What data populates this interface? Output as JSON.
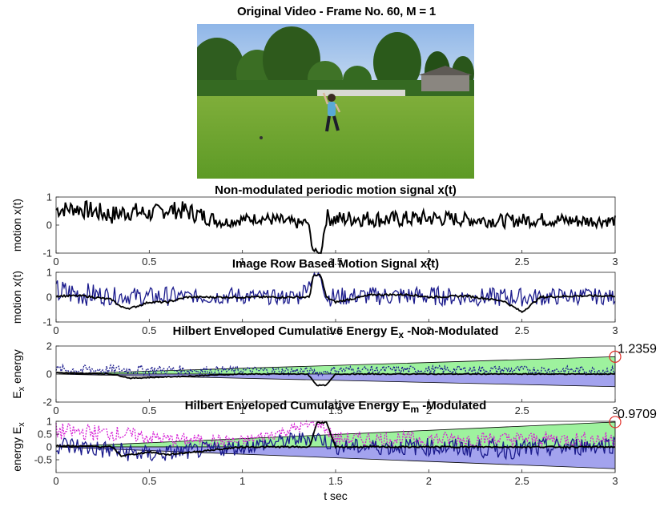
{
  "figure": {
    "top_title": "Original Video - Frame No. 60, M = 1"
  },
  "photo": {
    "description_icon": "video-frame-image"
  },
  "chart_data": [
    {
      "type": "line",
      "title": "Non-modulated periodic motion signal x(t)",
      "ylabel": "motion x(t)",
      "xlabel": "",
      "xlim": [
        0,
        3
      ],
      "ylim": [
        -1,
        1
      ],
      "xticks": [
        "0",
        "0.5",
        "1",
        "1.5",
        "2",
        "2.5",
        "3"
      ],
      "yticks": [
        "1",
        "0",
        "-1"
      ],
      "grid": false,
      "series": [
        {
          "color": "#000000",
          "style": "noisy",
          "x": [
            0,
            0.1,
            0.2,
            0.3,
            0.4,
            0.5,
            0.6,
            0.7,
            0.8,
            0.9,
            1.0,
            1.1,
            1.2,
            1.3,
            1.35,
            1.38,
            1.42,
            1.45,
            1.5,
            1.6,
            1.8,
            2.0,
            2.2,
            2.4,
            2.6,
            2.8,
            3.0
          ],
          "y": [
            0.55,
            0.6,
            0.5,
            0.35,
            0.5,
            0.4,
            0.55,
            0.5,
            0.3,
            0.1,
            0.2,
            0.25,
            0.15,
            0.05,
            0.1,
            -0.9,
            -1.05,
            0.3,
            0.2,
            0.25,
            0.2,
            0.25,
            0.2,
            0.15,
            0.2,
            0.15,
            0.15
          ],
          "amp": [
            0.3,
            0.3,
            0.35,
            0.35,
            0.35,
            0.3,
            0.3,
            0.35,
            0.3,
            0.2,
            0.2,
            0.2,
            0.25,
            0.2,
            0.2,
            0.1,
            0.1,
            0.3,
            0.3,
            0.3,
            0.3,
            0.3,
            0.25,
            0.25,
            0.25,
            0.25,
            0.2
          ]
        }
      ]
    },
    {
      "type": "line",
      "title": "Image Row Based Motion Signal x(t)",
      "ylabel": "motion x(t)",
      "xlabel": "",
      "xlim": [
        0,
        3
      ],
      "ylim": [
        -1,
        1
      ],
      "xticks": [
        "0",
        "0.5",
        "1",
        "1.5",
        "2",
        "2.5",
        "3"
      ],
      "yticks": [
        "1",
        "0",
        "-1"
      ],
      "grid": false,
      "series": [
        {
          "color": "#1a1a8c",
          "style": "noisy",
          "x": [
            0,
            0.1,
            0.2,
            0.3,
            0.4,
            0.5,
            0.6,
            0.7,
            0.8,
            0.9,
            1.0,
            1.1,
            1.2,
            1.3,
            1.38,
            1.42,
            1.45,
            1.5,
            1.6,
            1.8,
            2.0,
            2.2,
            2.4,
            2.6,
            2.8,
            3.0
          ],
          "y": [
            0.2,
            0.15,
            0.1,
            0.05,
            0.05,
            0.0,
            0.05,
            0.05,
            0.0,
            0.05,
            0.05,
            0.0,
            0.0,
            0.0,
            0.8,
            0.9,
            0.0,
            0.0,
            0.05,
            0.05,
            0.05,
            0.0,
            0.0,
            0.0,
            0.05,
            0.0
          ],
          "amp": [
            0.55,
            0.5,
            0.45,
            0.35,
            0.35,
            0.4,
            0.4,
            0.25,
            0.3,
            0.35,
            0.35,
            0.3,
            0.3,
            0.35,
            0.2,
            0.2,
            0.35,
            0.4,
            0.35,
            0.4,
            0.4,
            0.35,
            0.4,
            0.35,
            0.35,
            0.3
          ]
        },
        {
          "color": "#000000",
          "style": "smooth",
          "x": [
            0,
            0.15,
            0.3,
            0.35,
            0.4,
            0.5,
            0.6,
            0.7,
            0.9,
            1.0,
            1.1,
            1.2,
            1.3,
            1.36,
            1.38,
            1.42,
            1.45,
            1.5,
            1.7,
            1.9,
            2.0,
            2.2,
            2.4,
            2.5,
            2.6,
            2.8,
            3.0
          ],
          "y": [
            0.05,
            0.05,
            -0.1,
            -0.4,
            -0.45,
            -0.2,
            -0.2,
            0.0,
            0.0,
            0.0,
            0.0,
            0.0,
            0.0,
            0.0,
            0.85,
            0.9,
            0.0,
            -0.2,
            0.1,
            0.1,
            0.0,
            0.05,
            -0.15,
            -0.6,
            0.0,
            0.05,
            0.05
          ],
          "amp": [
            0.04
          ]
        }
      ]
    },
    {
      "type": "area",
      "title": "Hilbert Enveloped Cumulative Energy E",
      "title_sub": "x",
      "title_suffix": " -Non-Modulated",
      "ylabel": "energy",
      "ylabel_prefix": "E",
      "ylabel_sub": "x",
      "xlabel": "",
      "xlim": [
        0,
        3
      ],
      "ylim": [
        -2,
        2
      ],
      "xticks": [
        "0",
        "0.5",
        "1",
        "1.5",
        "2",
        "2.5",
        "3"
      ],
      "yticks": [
        "2",
        "0",
        "-2"
      ],
      "grid": false,
      "upper_wedge": {
        "color": "#9ef29e",
        "end_value": 1.2359
      },
      "lower_wedge": {
        "color": "#a3a3ee",
        "end_value": -0.9
      },
      "end_label": "1.2359",
      "series": [
        {
          "color": "#1a1a8c",
          "style": "noisy",
          "x": [
            0,
            0.5,
            1.0,
            1.35,
            1.42,
            1.5,
            2.0,
            2.5,
            3.0
          ],
          "y": [
            0.3,
            0.3,
            0.25,
            0.2,
            0.1,
            0.3,
            0.3,
            0.3,
            0.25
          ],
          "amp": [
            0.35,
            0.35,
            0.3,
            0.3,
            0.2,
            0.3,
            0.3,
            0.3,
            0.3
          ]
        },
        {
          "color": "#000000",
          "style": "smooth",
          "x": [
            0,
            0.3,
            0.4,
            0.6,
            1.0,
            1.35,
            1.4,
            1.45,
            1.5,
            2.0,
            3.0
          ],
          "y": [
            0.1,
            0.0,
            -0.3,
            -0.2,
            0.0,
            0.0,
            -0.8,
            -0.8,
            0.0,
            0.0,
            0.0
          ],
          "amp": [
            0.03
          ]
        }
      ]
    },
    {
      "type": "area",
      "title": "Hilbert Enveloped Cumulative Energy E",
      "title_sub": "m",
      "title_suffix": " -Modulated",
      "ylabel": "energy",
      "ylabel_prefix": "E",
      "ylabel_sub": "x",
      "xlabel": "t sec",
      "xlim": [
        0,
        3
      ],
      "ylim": [
        -1,
        1
      ],
      "xticks": [
        "0",
        "0.5",
        "1",
        "1.5",
        "2",
        "2.5",
        "3"
      ],
      "yticks": [
        "1",
        "0.5",
        "0",
        "-0.5"
      ],
      "grid": false,
      "upper_wedge": {
        "color": "#9ef29e",
        "end_value": 0.9709
      },
      "lower_wedge": {
        "color": "#a3a3ee",
        "end_value": -0.85
      },
      "end_label": "0.9709",
      "series": [
        {
          "color": "#d61fd6",
          "style": "noisy",
          "x": [
            0,
            0.3,
            0.6,
            1.0,
            1.38,
            1.42,
            1.5,
            2.0,
            2.5,
            3.0
          ],
          "y": [
            0.6,
            0.55,
            0.3,
            0.2,
            0.9,
            0.9,
            0.3,
            0.3,
            0.3,
            0.3
          ],
          "amp": [
            0.35,
            0.3,
            0.25,
            0.25,
            0.2,
            0.2,
            0.3,
            0.3,
            0.3,
            0.3
          ]
        },
        {
          "color": "#1a1a8c",
          "style": "noisy",
          "x": [
            0,
            0.5,
            1.0,
            1.4,
            1.5,
            2.0,
            2.5,
            3.0
          ],
          "y": [
            0.1,
            -0.3,
            0.0,
            0.4,
            0.0,
            0.0,
            -0.1,
            0.1
          ],
          "amp": [
            0.4,
            0.35,
            0.3,
            0.3,
            0.3,
            0.35,
            0.4,
            0.35
          ]
        },
        {
          "color": "#000000",
          "style": "smooth",
          "x": [
            0,
            0.3,
            0.35,
            0.5,
            0.6,
            1.0,
            1.36,
            1.4,
            1.45,
            1.5,
            2.0,
            3.0
          ],
          "y": [
            0.05,
            0.0,
            -0.35,
            -0.2,
            -0.3,
            0.0,
            0.0,
            0.95,
            0.95,
            0.0,
            0.0,
            0.0
          ],
          "amp": [
            0.03
          ]
        }
      ]
    }
  ]
}
